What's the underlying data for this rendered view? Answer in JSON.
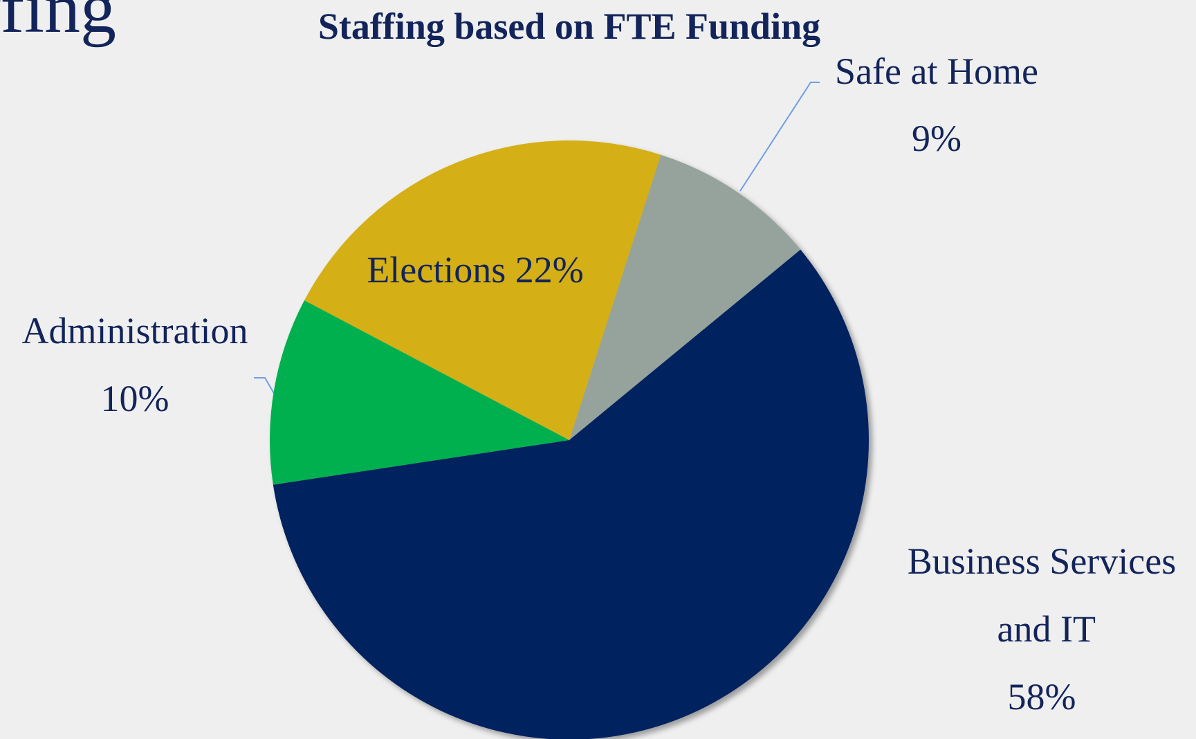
{
  "header_fragment": "ffing",
  "chart_data": {
    "type": "pie",
    "title": "Staffing based on FTE Funding",
    "categories": [
      "Safe at Home",
      "Business Services and IT",
      "Administration",
      "Elections"
    ],
    "values": [
      9,
      58,
      10,
      22
    ],
    "value_labels": [
      "9%",
      "58%",
      "10%",
      "22%"
    ],
    "colors": [
      "#95a39c",
      "#00205f",
      "#00b050",
      "#d4af15"
    ]
  }
}
